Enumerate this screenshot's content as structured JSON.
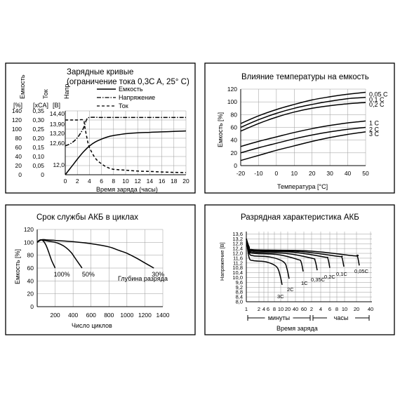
{
  "chart_data": [
    {
      "type": "line",
      "title": "Зарядные кривые",
      "subtitle": "(ограничение тока 0,3C A, 25° C)",
      "xlabel": "Время заряда (часы)",
      "xlim": [
        0,
        20
      ],
      "x_ticks": [
        "0",
        "2",
        "4",
        "6",
        "8",
        "10",
        "12",
        "14",
        "16",
        "18",
        "20"
      ],
      "axes": [
        {
          "name": "Емкость",
          "unit": "[%]",
          "ticks": [
            "0",
            "20",
            "40",
            "60",
            "80",
            "100",
            "120",
            "140"
          ],
          "range": [
            0,
            140
          ]
        },
        {
          "name": "Ток",
          "unit": "[xCA]",
          "ticks": [
            "0",
            "0,05",
            "0,10",
            "0,15",
            "0,20",
            "0,25",
            "0,30",
            "0,35"
          ],
          "range": [
            0,
            0.35
          ]
        },
        {
          "name": "Напр.",
          "unit": "[B]",
          "ticks": [
            "12,0",
            "12,60",
            "13,20",
            "13,90",
            "14,40"
          ]
        }
      ],
      "legend": [
        "Емкость",
        "Напряжение",
        "Ток"
      ],
      "series": [
        {
          "name": "Емкость",
          "style": "solid",
          "x": [
            0,
            1,
            2,
            3,
            4,
            5,
            6,
            7,
            8,
            9,
            10,
            12,
            14,
            16,
            18,
            20
          ],
          "y": [
            0,
            17,
            34,
            50,
            63,
            72,
            78,
            83,
            86,
            88,
            90,
            92,
            93,
            94,
            95,
            96
          ]
        },
        {
          "name": "Напряжение",
          "style": "dash-dot",
          "x": [
            0,
            1,
            2,
            3,
            3.5,
            4,
            6,
            8,
            10,
            12,
            14,
            16,
            18,
            20
          ],
          "y": [
            13.1,
            13.2,
            13.4,
            13.75,
            14.05,
            14.15,
            14.15,
            14.15,
            14.15,
            14.15,
            14.15,
            14.15,
            14.15,
            14.15
          ]
        },
        {
          "name": "Ток",
          "style": "dashed",
          "x": [
            0,
            1,
            2,
            3,
            3.2,
            3.6,
            4,
            5,
            6,
            7,
            8,
            10,
            12,
            14,
            16,
            18,
            20
          ],
          "y": [
            0.3,
            0.3,
            0.3,
            0.3,
            0.27,
            0.2,
            0.15,
            0.09,
            0.06,
            0.04,
            0.03,
            0.025,
            0.02,
            0.018,
            0.015,
            0.013,
            0.012
          ]
        }
      ]
    },
    {
      "type": "line",
      "title": "Влияние температуры на емкость",
      "xlabel": "Температура [°C]",
      "ylabel": "Емкость [%]",
      "xlim": [
        -20,
        50
      ],
      "ylim": [
        0,
        120
      ],
      "x_ticks": [
        "-20",
        "-10",
        "0",
        "10",
        "20",
        "30",
        "40",
        "50"
      ],
      "y_ticks": [
        "0",
        "20",
        "40",
        "60",
        "80",
        "100",
        "120"
      ],
      "series": [
        {
          "name": "0,05 C",
          "x": [
            -20,
            -10,
            0,
            10,
            20,
            30,
            40,
            50
          ],
          "y": [
            66,
            78,
            88,
            96,
            103,
            108,
            112,
            115
          ]
        },
        {
          "name": "0,1 C",
          "x": [
            -20,
            -10,
            0,
            10,
            20,
            30,
            40,
            50
          ],
          "y": [
            60,
            72,
            82,
            90,
            96,
            101,
            105,
            107
          ]
        },
        {
          "name": "0,2 C",
          "x": [
            -20,
            -10,
            0,
            10,
            20,
            30,
            40,
            50
          ],
          "y": [
            54,
            66,
            76,
            84,
            90,
            94,
            97,
            99
          ]
        },
        {
          "name": "1 C",
          "x": [
            -20,
            -10,
            0,
            10,
            20,
            30,
            40,
            50
          ],
          "y": [
            30,
            38,
            45,
            52,
            58,
            63,
            67,
            70
          ]
        },
        {
          "name": "2 C",
          "x": [
            -20,
            -10,
            0,
            10,
            20,
            30,
            40,
            50
          ],
          "y": [
            20,
            28,
            35,
            42,
            48,
            53,
            57,
            60
          ]
        },
        {
          "name": "3 C",
          "x": [
            -20,
            -10,
            0,
            10,
            20,
            30,
            40,
            50
          ],
          "y": [
            8,
            16,
            24,
            31,
            38,
            44,
            49,
            53
          ]
        }
      ]
    },
    {
      "type": "line",
      "title": "Срок службы АКБ в циклах",
      "xlabel": "Число циклов",
      "ylabel": "Емкость [%]",
      "xlim": [
        0,
        1400
      ],
      "ylim": [
        0,
        120
      ],
      "x_ticks": [
        "200",
        "400",
        "600",
        "800",
        "1000",
        "1200",
        "1400"
      ],
      "y_ticks": [
        "0",
        "20",
        "40",
        "60",
        "80",
        "100",
        "120"
      ],
      "annotation": "Глубина разряда",
      "series": [
        {
          "name": "100%",
          "x": [
            0,
            20,
            40,
            60,
            80,
            100,
            120,
            140,
            160,
            180,
            200
          ],
          "y": [
            100,
            103,
            104,
            103,
            100,
            95,
            88,
            80,
            72,
            66,
            60
          ]
        },
        {
          "name": "50%",
          "x": [
            0,
            40,
            80,
            120,
            200,
            260,
            320,
            380,
            420,
            460,
            500
          ],
          "y": [
            100,
            104,
            103,
            102,
            100,
            97,
            92,
            84,
            76,
            68,
            60
          ]
        },
        {
          "name": "30%",
          "x": [
            0,
            50,
            100,
            200,
            400,
            600,
            800,
            900,
            1000,
            1100,
            1200,
            1300
          ],
          "y": [
            100,
            104,
            104,
            103,
            101,
            98,
            93,
            88,
            83,
            76,
            68,
            60
          ]
        }
      ]
    },
    {
      "type": "line",
      "title": "Разрядная характеристика АКБ",
      "xlabel": "Время заряда",
      "ylabel": "Напряжение [B]",
      "ylim": [
        8.0,
        13.8
      ],
      "y_ticks": [
        "8,0",
        "8,4",
        "8,8",
        "9,2",
        "9,6",
        "10,0",
        "10,4",
        "10,8",
        "11,2",
        "11,6",
        "12,0",
        "12,4",
        "12,8",
        "13,2",
        "13,6"
      ],
      "x_ticks": [
        "1",
        "2",
        "4",
        "6",
        "8",
        "10",
        "20",
        "40",
        "60",
        "2",
        "4",
        "6",
        "8",
        "10",
        "20",
        "40"
      ],
      "x_groups": [
        "минуты",
        "часы"
      ],
      "series": [
        {
          "name": "3C",
          "end_time": "8 минуты"
        },
        {
          "name": "2C",
          "end_time": "15 минуты"
        },
        {
          "name": "1C",
          "end_time": "40 минуты"
        },
        {
          "name": "0,35C",
          "end_time": "2 часы"
        },
        {
          "name": "0,2C",
          "end_time": "4 часы"
        },
        {
          "name": "0,1C",
          "end_time": "8 часы"
        },
        {
          "name": "0,05C",
          "end_time": "20 часы"
        }
      ]
    }
  ]
}
